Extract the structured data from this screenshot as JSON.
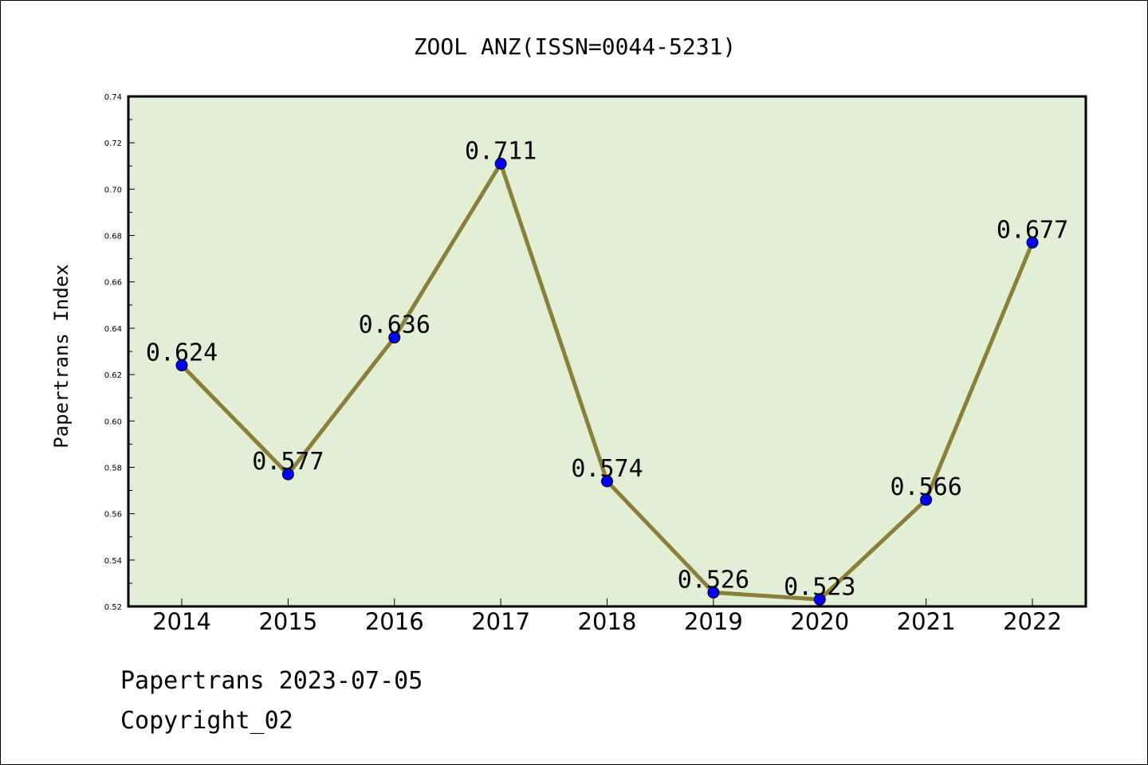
{
  "chart_data": {
    "type": "line",
    "title": "ZOOL ANZ(ISSN=0044-5231)",
    "xlabel": "",
    "ylabel": "Papertrans Index",
    "categories": [
      "2014",
      "2015",
      "2016",
      "2017",
      "2018",
      "2019",
      "2020",
      "2021",
      "2022"
    ],
    "values": [
      0.624,
      0.577,
      0.636,
      0.711,
      0.574,
      0.526,
      0.523,
      0.566,
      0.677
    ],
    "data_labels": [
      "0.624",
      "0.577",
      "0.636",
      "0.711",
      "0.574",
      "0.526",
      "0.523",
      "0.566",
      "0.677"
    ],
    "ylim": [
      0.52,
      0.74
    ],
    "yticks": [
      "0.52",
      "0.54",
      "0.56",
      "0.58",
      "0.60",
      "0.62",
      "0.64",
      "0.66",
      "0.68",
      "0.70",
      "0.72",
      "0.74"
    ],
    "grid": false,
    "colors": {
      "plot_background": "#e2efd6",
      "line": "#8b7d3a",
      "marker": "#0000ff"
    }
  },
  "footer": {
    "line1": "Papertrans 2023-07-05",
    "line2": "Copyright_02"
  }
}
